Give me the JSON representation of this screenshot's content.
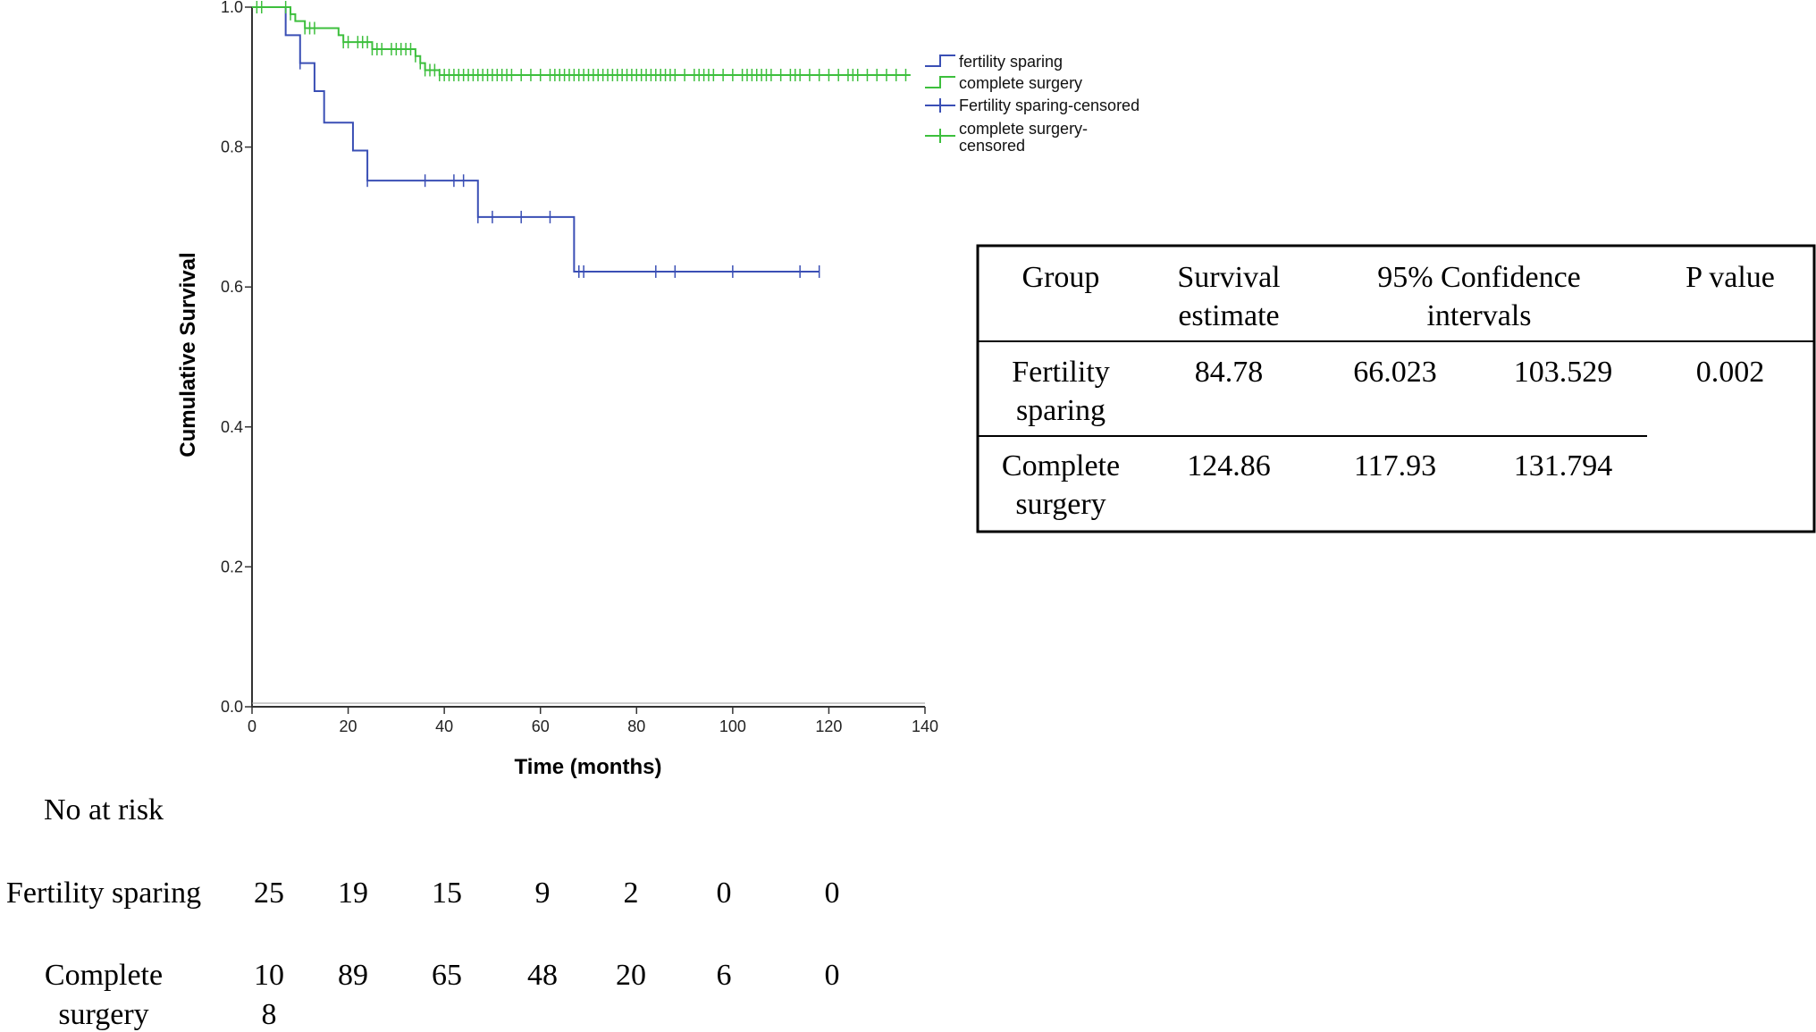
{
  "chart_data": {
    "type": "line",
    "subtype": "kaplan-meier",
    "xlabel": "Time (months)",
    "ylabel": "Cumulative Survival",
    "xlim": [
      0,
      140
    ],
    "ylim": [
      0,
      1.0
    ],
    "xticks": [
      "0",
      "20",
      "40",
      "60",
      "80",
      "100",
      "120",
      "140"
    ],
    "yticks": [
      "0.0",
      "0.2",
      "0.4",
      "0.6",
      "0.8",
      "1.0"
    ],
    "grid": false,
    "legend_position": "top-right",
    "series": [
      {
        "name": "fertility sparing",
        "censored_name": "Fertility sparing-censored",
        "color": "#3a4fb5",
        "steps": [
          [
            0,
            1.0
          ],
          [
            7,
            0.96
          ],
          [
            10,
            0.92
          ],
          [
            13,
            0.88
          ],
          [
            15,
            0.835
          ],
          [
            21,
            0.795
          ],
          [
            24,
            0.752
          ],
          [
            47,
            0.7
          ],
          [
            67,
            0.622
          ],
          [
            118,
            0.622
          ]
        ],
        "censored": [
          10,
          24,
          36,
          42,
          44,
          47,
          50,
          56,
          62,
          68,
          69,
          84,
          88,
          100,
          114,
          118
        ]
      },
      {
        "name": "complete surgery",
        "censored_name": "complete surgery-censored",
        "color": "#3dbf3d",
        "steps": [
          [
            0,
            1.0
          ],
          [
            8,
            0.99
          ],
          [
            9,
            0.98
          ],
          [
            11,
            0.97
          ],
          [
            18,
            0.96
          ],
          [
            19,
            0.95
          ],
          [
            25,
            0.94
          ],
          [
            34,
            0.93
          ],
          [
            35,
            0.92
          ],
          [
            36,
            0.91
          ],
          [
            39,
            0.903
          ],
          [
            137,
            0.903
          ]
        ],
        "censored": [
          1,
          2,
          7,
          8,
          11,
          12,
          13,
          19,
          20,
          22,
          23,
          24,
          25,
          26,
          27,
          29,
          30,
          31,
          32,
          33,
          34,
          35,
          36,
          37,
          38,
          39,
          40,
          41,
          42,
          43,
          44,
          45,
          46,
          47,
          48,
          49,
          50,
          51,
          52,
          53,
          54,
          56,
          58,
          60,
          62,
          63,
          64,
          65,
          66,
          67,
          68,
          69,
          70,
          71,
          72,
          73,
          74,
          75,
          76,
          77,
          78,
          79,
          80,
          81,
          82,
          83,
          84,
          85,
          86,
          87,
          88,
          90,
          92,
          93,
          94,
          95,
          96,
          98,
          100,
          102,
          103,
          104,
          105,
          106,
          107,
          108,
          110,
          112,
          113,
          114,
          116,
          118,
          120,
          122,
          124,
          125,
          126,
          128,
          130,
          132,
          134,
          136
        ]
      }
    ]
  },
  "risk_table": {
    "heading": "No at risk",
    "rows": [
      {
        "label": "Fertility sparing",
        "values": [
          "25",
          "19",
          "15",
          "9",
          "2",
          "0",
          "0"
        ]
      },
      {
        "label_line1": "Complete",
        "label_line2": "surgery",
        "first_line1": "10",
        "first_line2": "8",
        "values": [
          "89",
          "65",
          "48",
          "20",
          "6",
          "0"
        ]
      }
    ]
  },
  "stats_table": {
    "headers": {
      "group": "Group",
      "estimate_line1": "Survival",
      "estimate_line2": "estimate",
      "ci_line1": "95% Confidence",
      "ci_line2": "intervals",
      "p": "P value"
    },
    "rows": [
      {
        "group_line1": "Fertility",
        "group_line2": "sparing",
        "estimate": "84.78",
        "ci_low": "66.023",
        "ci_high": "103.529",
        "p": "0.002"
      },
      {
        "group_line1": "Complete",
        "group_line2": "surgery",
        "estimate": "124.86",
        "ci_low": "117.93",
        "ci_high": "131.794",
        "p": ""
      }
    ]
  }
}
